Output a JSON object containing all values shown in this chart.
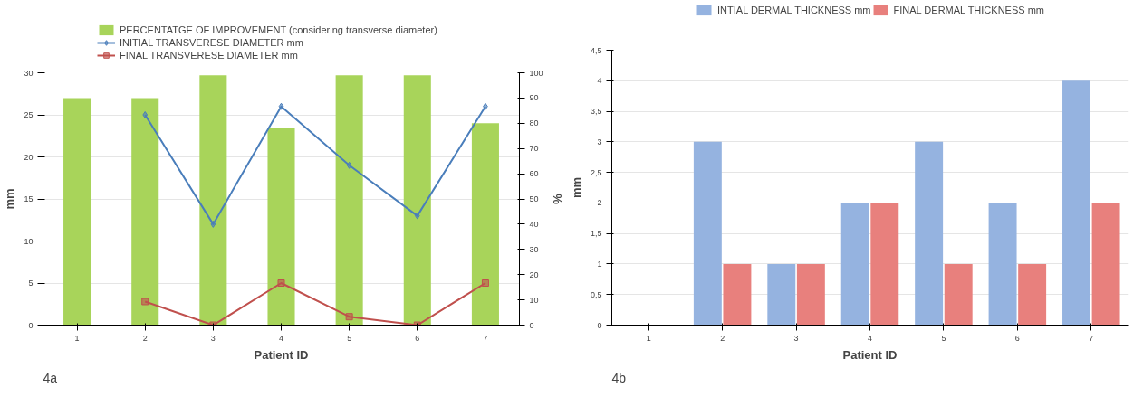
{
  "chart_data": [
    {
      "type": "bar",
      "categories": [
        "1",
        "2",
        "3",
        "4",
        "5",
        "6",
        "7"
      ],
      "xlabel": "Patient ID",
      "ylabel": "mm",
      "y2label": "%",
      "ylim": [
        0,
        30
      ],
      "yticks": [
        0,
        5,
        10,
        15,
        20,
        25,
        30
      ],
      "y2lim": [
        0,
        100
      ],
      "y2ticks": [
        0,
        10,
        20,
        30,
        40,
        50,
        60,
        70,
        80,
        90,
        100
      ],
      "grid": "y",
      "legend": "top",
      "annotations": [
        "4a"
      ],
      "series": [
        {
          "name": "PERCENTATGE OF IMPROVEMENT (considering transverse diameter)",
          "type": "bar",
          "axis": "y2",
          "color": "#a8d45a",
          "values": [
            90,
            90,
            99,
            78,
            99,
            99,
            80
          ]
        },
        {
          "name": "INITIAL TRANSVERESE DIAMETER mm",
          "type": "line",
          "marker": "diamond",
          "color": "#4a7ebb",
          "values": [
            null,
            25,
            12,
            26,
            19,
            13,
            26
          ]
        },
        {
          "name": "FINAL TRANSVERESE DIAMETER mm",
          "type": "line",
          "marker": "square",
          "color": "#c0504d",
          "values": [
            null,
            2.8,
            0,
            5,
            1,
            0,
            5
          ]
        }
      ]
    },
    {
      "type": "bar",
      "categories": [
        "1",
        "2",
        "3",
        "4",
        "5",
        "6",
        "7"
      ],
      "xlabel": "Patient ID",
      "ylabel": "mm",
      "ylim": [
        0,
        4.5
      ],
      "yticks": [
        {
          "value": 0,
          "label": "0"
        },
        {
          "value": 0.5,
          "label": "0,5"
        },
        {
          "value": 1,
          "label": "1"
        },
        {
          "value": 1.5,
          "label": "1,5"
        },
        {
          "value": 2,
          "label": "2"
        },
        {
          "value": 2.5,
          "label": "2,5"
        },
        {
          "value": 3,
          "label": "3"
        },
        {
          "value": 3.5,
          "label": "3,5"
        },
        {
          "value": 4,
          "label": "4"
        },
        {
          "value": 4.5,
          "label": "4,5"
        }
      ],
      "grid": "y",
      "legend": "top",
      "annotations": [
        "4b"
      ],
      "series": [
        {
          "name": "INTIAL DERMAL THICKNESS mm",
          "color": "#95b3e0",
          "values": [
            0,
            3,
            1,
            2,
            3,
            2,
            4
          ]
        },
        {
          "name": "FINAL DERMAL THICKNESS mm",
          "color": "#e8807d",
          "values": [
            0,
            1,
            1,
            2,
            1,
            1,
            2
          ]
        }
      ]
    }
  ]
}
